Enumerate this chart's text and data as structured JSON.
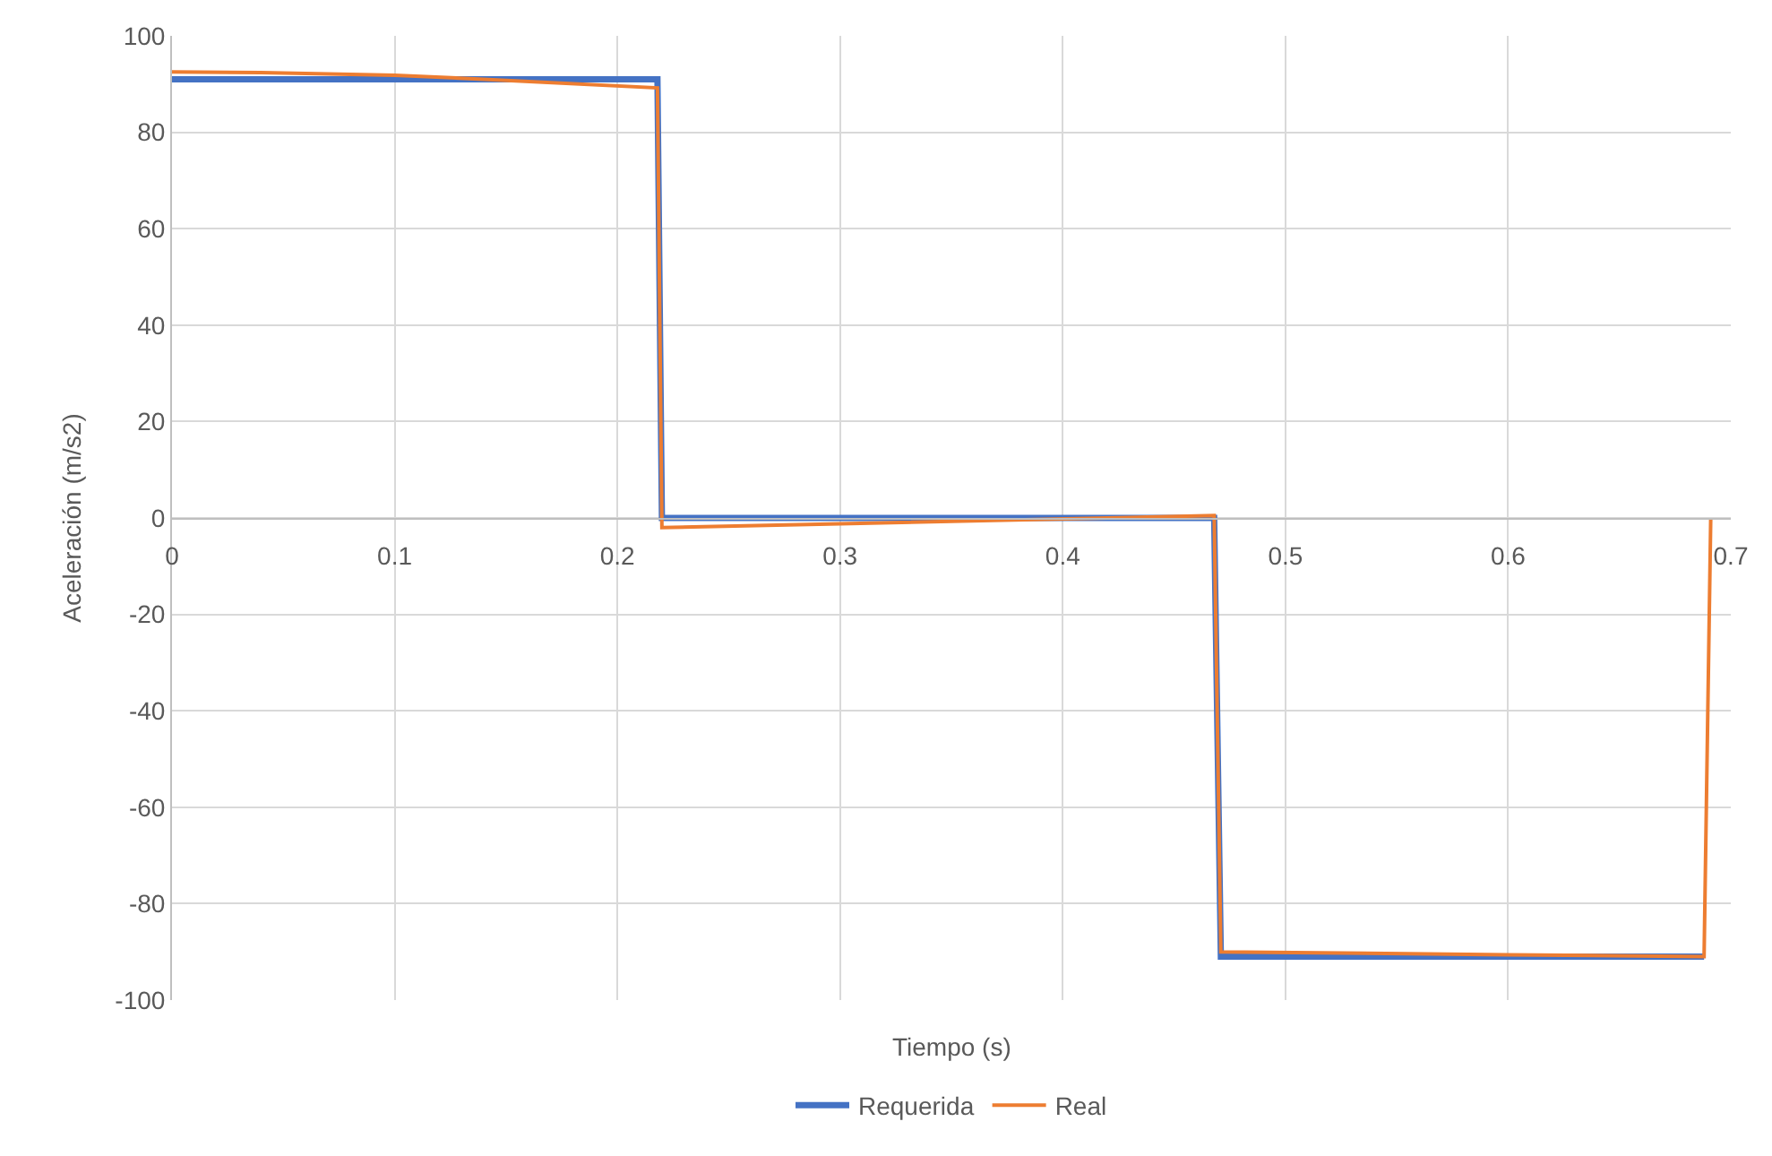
{
  "chart_data": {
    "type": "line",
    "xlabel": "Tiempo (s)",
    "ylabel": "Aceleración (m/s2)",
    "xlim": [
      0,
      0.7
    ],
    "xticks": [
      0,
      0.1,
      0.2,
      0.3,
      0.4,
      0.5,
      0.6,
      0.7
    ],
    "ylim": [
      -100,
      100
    ],
    "yticks": [
      -100,
      -80,
      -60,
      -40,
      -20,
      0,
      20,
      40,
      60,
      80,
      100
    ],
    "grid": true,
    "legend": "bottom",
    "marker": "none",
    "line_style": "solid",
    "series": [
      {
        "name": "Requerida",
        "color": "#4472c4",
        "x": [
          0,
          0.218,
          0.22,
          0.468,
          0.471,
          0.688
        ],
        "values": [
          91,
          91,
          0,
          0,
          -91,
          -91
        ]
      },
      {
        "name": "Real",
        "color": "#ed7d31",
        "x": [
          0,
          0.04,
          0.1,
          0.14,
          0.218,
          0.22,
          0.3,
          0.42,
          0.468,
          0.471,
          0.6,
          0.688,
          0.691
        ],
        "values": [
          92.5,
          92.4,
          91.8,
          91,
          89.2,
          -2,
          -1.2,
          0,
          0.5,
          -90,
          -90.6,
          -91,
          0
        ]
      }
    ]
  }
}
